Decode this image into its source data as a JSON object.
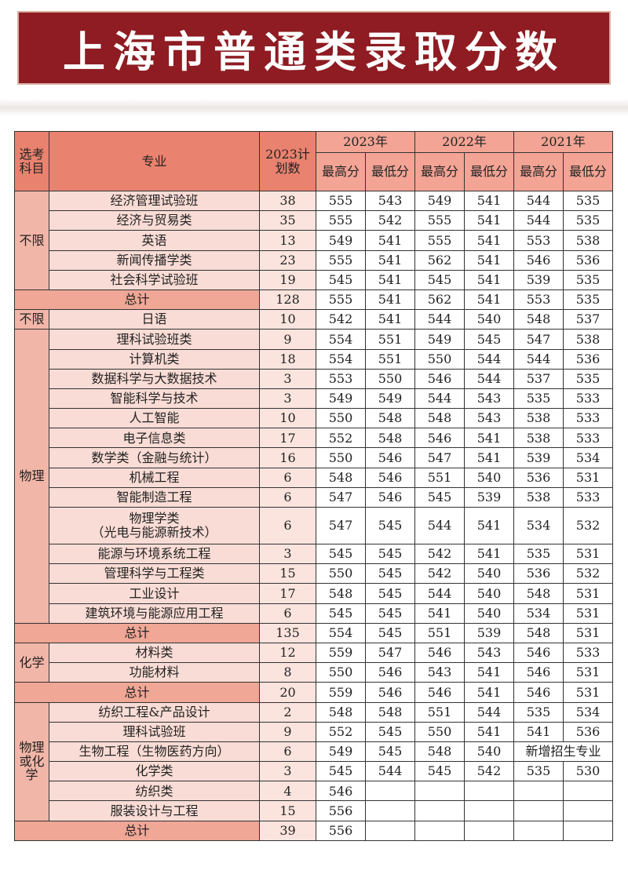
{
  "title": "上海市普通类录取分数",
  "header": {
    "subject": "选考科目",
    "major": "专业",
    "plan": "2023计划数",
    "years": [
      "2023年",
      "2022年",
      "2021年"
    ],
    "max": "最高分",
    "min": "最低分"
  },
  "groups": [
    {
      "subject": "不限",
      "rows": [
        {
          "major": "经济管理试验班",
          "plan": "38",
          "scores": [
            "555",
            "543",
            "549",
            "541",
            "544",
            "535"
          ]
        },
        {
          "major": "经济与贸易类",
          "plan": "35",
          "scores": [
            "555",
            "542",
            "555",
            "541",
            "544",
            "535"
          ]
        },
        {
          "major": "英语",
          "plan": "13",
          "scores": [
            "549",
            "541",
            "555",
            "541",
            "553",
            "538"
          ]
        },
        {
          "major": "新闻传播学类",
          "plan": "23",
          "scores": [
            "555",
            "541",
            "562",
            "541",
            "546",
            "536"
          ]
        },
        {
          "major": "社会科学试验班",
          "plan": "19",
          "scores": [
            "545",
            "541",
            "545",
            "541",
            "539",
            "535"
          ]
        }
      ],
      "total": {
        "label": "总计",
        "plan": "128",
        "scores": [
          "555",
          "541",
          "562",
          "541",
          "553",
          "535"
        ]
      }
    },
    {
      "subject": "不限",
      "rows": [
        {
          "major": "日语",
          "plan": "10",
          "scores": [
            "542",
            "541",
            "544",
            "540",
            "548",
            "537"
          ]
        }
      ]
    },
    {
      "subject": "物理",
      "rows": [
        {
          "major": "理科试验班类",
          "plan": "9",
          "scores": [
            "554",
            "551",
            "549",
            "545",
            "547",
            "538"
          ]
        },
        {
          "major": "计算机类",
          "plan": "18",
          "scores": [
            "554",
            "551",
            "550",
            "544",
            "544",
            "536"
          ]
        },
        {
          "major": "数据科学与大数据技术",
          "plan": "3",
          "scores": [
            "553",
            "550",
            "546",
            "544",
            "537",
            "535"
          ]
        },
        {
          "major": "智能科学与技术",
          "plan": "3",
          "scores": [
            "549",
            "549",
            "544",
            "543",
            "535",
            "533"
          ]
        },
        {
          "major": "人工智能",
          "plan": "10",
          "scores": [
            "550",
            "548",
            "548",
            "543",
            "538",
            "533"
          ]
        },
        {
          "major": "电子信息类",
          "plan": "17",
          "scores": [
            "552",
            "548",
            "546",
            "541",
            "538",
            "533"
          ]
        },
        {
          "major": "数学类（金融与统计）",
          "plan": "16",
          "scores": [
            "550",
            "546",
            "547",
            "541",
            "539",
            "534"
          ]
        },
        {
          "major": "机械工程",
          "plan": "6",
          "scores": [
            "548",
            "546",
            "551",
            "540",
            "536",
            "531"
          ]
        },
        {
          "major": "智能制造工程",
          "plan": "6",
          "scores": [
            "547",
            "546",
            "545",
            "539",
            "538",
            "533"
          ]
        },
        {
          "major": "物理学类",
          "major2": "（光电与能源新技术）",
          "plan": "6",
          "scores": [
            "547",
            "545",
            "544",
            "541",
            "534",
            "532"
          ]
        },
        {
          "major": "能源与环境系统工程",
          "plan": "3",
          "scores": [
            "545",
            "545",
            "542",
            "541",
            "535",
            "531"
          ]
        },
        {
          "major": "管理科学与工程类",
          "plan": "15",
          "scores": [
            "550",
            "545",
            "542",
            "540",
            "536",
            "532"
          ]
        },
        {
          "major": "工业设计",
          "plan": "17",
          "scores": [
            "548",
            "545",
            "544",
            "540",
            "548",
            "531"
          ]
        },
        {
          "major": "建筑环境与能源应用工程",
          "plan": "6",
          "scores": [
            "545",
            "545",
            "541",
            "540",
            "534",
            "531"
          ]
        }
      ],
      "total": {
        "label": "总计",
        "plan": "135",
        "scores": [
          "554",
          "545",
          "551",
          "539",
          "548",
          "531"
        ]
      }
    },
    {
      "subject": "化学",
      "rows": [
        {
          "major": "材料类",
          "plan": "12",
          "scores": [
            "559",
            "547",
            "546",
            "543",
            "546",
            "533"
          ]
        },
        {
          "major": "功能材料",
          "plan": "8",
          "scores": [
            "550",
            "546",
            "543",
            "541",
            "546",
            "531"
          ]
        }
      ],
      "total": {
        "label": "总计",
        "plan": "20",
        "scores": [
          "559",
          "546",
          "546",
          "541",
          "546",
          "531"
        ]
      }
    },
    {
      "subject": "物理或化学",
      "rows": [
        {
          "major": "纺织工程&产品设计",
          "plan": "2",
          "scores": [
            "548",
            "548",
            "551",
            "544",
            "535",
            "534"
          ]
        },
        {
          "major": "理科试验班",
          "plan": "9",
          "scores": [
            "552",
            "545",
            "550",
            "541",
            "541",
            "536"
          ]
        },
        {
          "major": "生物工程（生物医药方向）",
          "plan": "6",
          "scores": [
            "549",
            "545",
            "548",
            "540"
          ],
          "note": "新增招生专业"
        },
        {
          "major": "化学类",
          "plan": "3",
          "scores": [
            "545",
            "544",
            "545",
            "542",
            "535",
            "530"
          ]
        },
        {
          "major": "纺织类",
          "plan": "4",
          "scores": [
            "546",
            "",
            "",
            "",
            "",
            ""
          ]
        },
        {
          "major": "服装设计与工程",
          "plan": "15",
          "scores": [
            "556",
            "",
            "",
            "",
            "",
            ""
          ]
        }
      ],
      "total": {
        "label": "总计",
        "plan": "39",
        "scores": [
          "556",
          "",
          "",
          "",
          "",
          ""
        ]
      }
    }
  ],
  "colors": {
    "banner": "#8e1c22",
    "header": "#e9826f",
    "total": "#f0a796"
  }
}
